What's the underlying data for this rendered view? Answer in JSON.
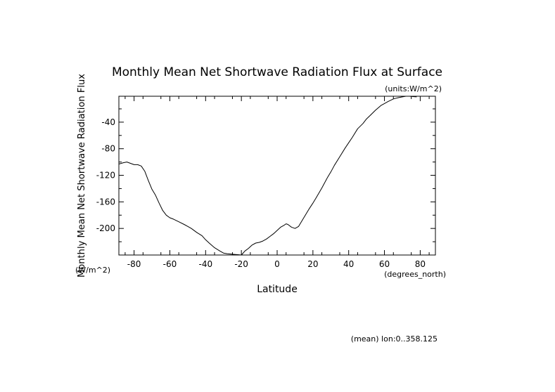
{
  "chart_data": {
    "type": "line",
    "title": "Monthly Mean Net Shortwave Radiation Flux at Surface",
    "units_label": "(units:W/m^2)",
    "xlabel": "Latitude",
    "x_units": "(degrees_north)",
    "ylabel": "Monthly Mean Net Shortwave Radiation Flux",
    "y_units": "(W/m^2)",
    "footnote": "(mean) lon:0..358.125",
    "xlim": [
      -88.5,
      88.5
    ],
    "ylim": [
      -240,
      -1
    ],
    "x_ticks": [
      -80,
      -60,
      -40,
      -20,
      0,
      20,
      40,
      60,
      80
    ],
    "y_ticks": [
      -40,
      -80,
      -120,
      -160,
      -200
    ],
    "x_tick_labels": [
      "-80",
      "-60",
      "-40",
      "-20",
      "0",
      "20",
      "40",
      "60",
      "80"
    ],
    "y_tick_labels": [
      "-40",
      "-80",
      "-120",
      "-160",
      "-200"
    ],
    "grid": false,
    "series": [
      {
        "x": [
          -88.5,
          -86,
          -84,
          -82,
          -80,
          -78,
          -76,
          -74,
          -72,
          -70,
          -68,
          -66,
          -64,
          -62,
          -60,
          -58,
          -55,
          -52,
          -50,
          -48,
          -45,
          -42,
          -40,
          -38,
          -35,
          -32,
          -30,
          -28,
          -26,
          -24,
          -22,
          -20,
          -18,
          -16,
          -14,
          -12,
          -10,
          -8,
          -6,
          -4,
          -2,
          0,
          2,
          4,
          5,
          6,
          8,
          10,
          12,
          14,
          16,
          18,
          20,
          22,
          25,
          28,
          30,
          32,
          35,
          38,
          40,
          42,
          45,
          48,
          50,
          52,
          55,
          58,
          60,
          62,
          65,
          68,
          70,
          72,
          74,
          76,
          78
        ],
        "y": [
          -103,
          -101,
          -100,
          -102,
          -104,
          -104,
          -106,
          -114,
          -128,
          -141,
          -150,
          -162,
          -173,
          -180,
          -184,
          -186,
          -190,
          -194,
          -197,
          -200,
          -206,
          -211,
          -217,
          -222,
          -229,
          -234,
          -237,
          -238,
          -238.5,
          -239,
          -239.5,
          -240,
          -234,
          -230,
          -225,
          -222,
          -221,
          -219,
          -216,
          -212,
          -208,
          -203,
          -198,
          -195,
          -193,
          -194,
          -198,
          -200,
          -197,
          -188,
          -179,
          -170,
          -162,
          -153,
          -139,
          -124,
          -115,
          -105,
          -92,
          -79,
          -71,
          -63,
          -50,
          -42,
          -35,
          -30,
          -22,
          -15,
          -12,
          -9,
          -5,
          -3,
          -2,
          -1,
          -1,
          -1.5,
          -2
        ]
      }
    ]
  }
}
